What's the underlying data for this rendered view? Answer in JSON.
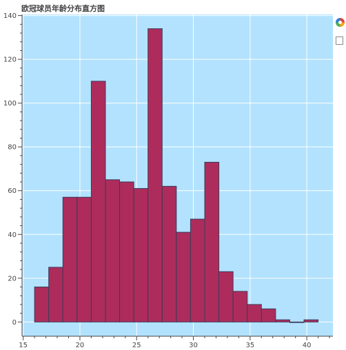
{
  "chart_data": {
    "type": "bar",
    "title": "欧冠球员年龄分布直方图",
    "xlabel": "",
    "ylabel": "",
    "bin_edges": [
      16,
      17.25,
      18.5,
      19.75,
      21,
      22.25,
      23.5,
      24.75,
      26,
      27.25,
      28.5,
      29.75,
      31,
      32.25,
      33.5,
      34.75,
      36,
      37.25,
      38.5,
      39.75,
      41
    ],
    "values": [
      16,
      25,
      57,
      57,
      110,
      65,
      64,
      61,
      134,
      62,
      41,
      47,
      73,
      23,
      14,
      8,
      6,
      1,
      0,
      1
    ],
    "xlim": [
      14.9,
      42.3
    ],
    "ylim": [
      -6.5,
      140.5
    ],
    "x_ticks": [
      15,
      20,
      25,
      30,
      35,
      40
    ],
    "y_ticks": [
      0,
      20,
      40,
      60,
      80,
      100,
      120,
      140
    ],
    "grid": true,
    "colors": {
      "bar_fill": "#ad2c5c",
      "bar_stroke": "#3b3b5a",
      "plot_bg": "#b2e2fe",
      "grid": "#ffffff",
      "axis": "#444444"
    }
  },
  "toolbar": {
    "icons": [
      "bokeh-logo-icon",
      "toggle-tool-icon"
    ]
  }
}
